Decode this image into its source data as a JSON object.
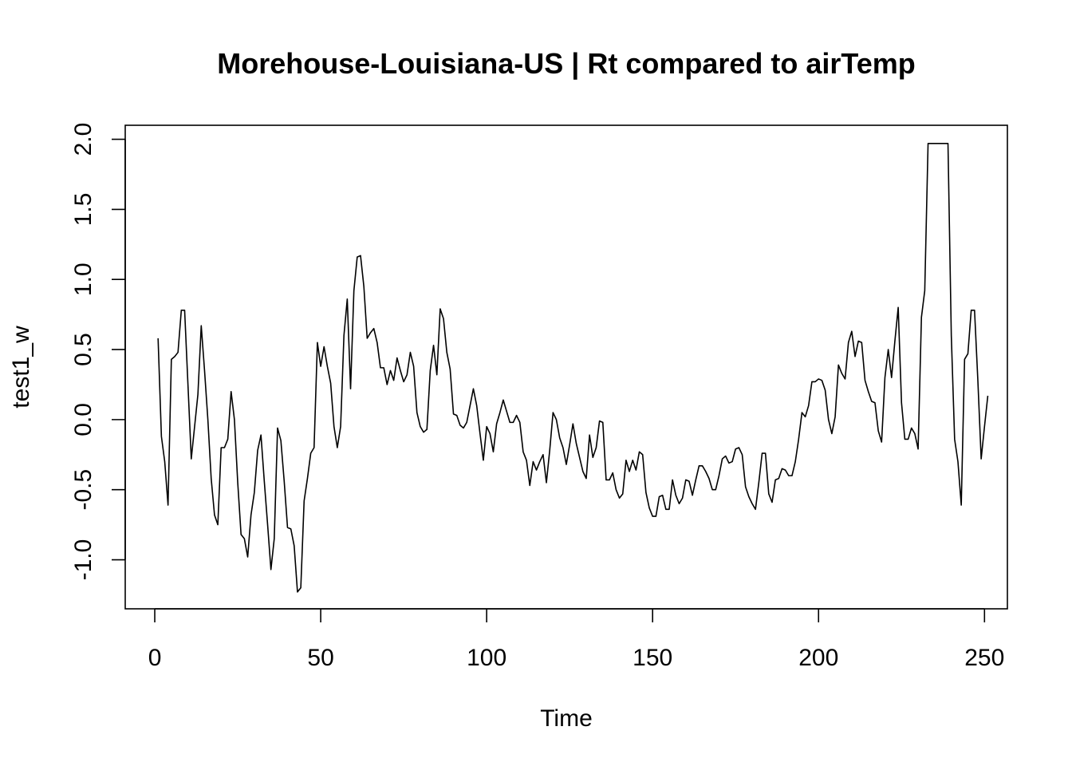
{
  "chart_data": {
    "type": "line",
    "title": "Morehouse-Louisiana-US | Rt compared to airTemp",
    "xlabel": "Time",
    "ylabel": "test1_w",
    "xlim": [
      -8.9,
      256.9
    ],
    "ylim": [
      -1.35,
      2.1
    ],
    "x_ticks": [
      0,
      50,
      100,
      150,
      200,
      250
    ],
    "x_tick_labels": [
      "0",
      "50",
      "100",
      "150",
      "200",
      "250"
    ],
    "y_ticks": [
      -1.0,
      -0.5,
      0.0,
      0.5,
      1.0,
      1.5,
      2.0
    ],
    "y_tick_labels": [
      "-1.0",
      "-0.5",
      "0.0",
      "0.5",
      "1.0",
      "1.5",
      "2.0"
    ],
    "grid": false,
    "x_start": 1,
    "x_step": 1,
    "series": [
      {
        "values": [
          0.58,
          -0.12,
          -0.3,
          -0.61,
          0.43,
          0.45,
          0.48,
          0.78,
          0.78,
          0.25,
          -0.28,
          -0.05,
          0.18,
          0.67,
          0.35,
          0.0,
          -0.42,
          -0.68,
          -0.75,
          -0.2,
          -0.2,
          -0.14,
          0.2,
          0.0,
          -0.45,
          -0.82,
          -0.85,
          -0.98,
          -0.68,
          -0.52,
          -0.22,
          -0.11,
          -0.44,
          -0.75,
          -1.07,
          -0.85,
          -0.06,
          -0.15,
          -0.44,
          -0.77,
          -0.78,
          -0.9,
          -1.23,
          -1.2,
          -0.58,
          -0.42,
          -0.24,
          -0.2,
          0.55,
          0.38,
          0.52,
          0.38,
          0.26,
          -0.05,
          -0.2,
          -0.05,
          0.6,
          0.86,
          0.22,
          0.92,
          1.16,
          1.17,
          0.95,
          0.58,
          0.62,
          0.65,
          0.55,
          0.37,
          0.37,
          0.25,
          0.35,
          0.28,
          0.44,
          0.35,
          0.27,
          0.32,
          0.48,
          0.38,
          0.05,
          -0.05,
          -0.09,
          -0.07,
          0.35,
          0.53,
          0.32,
          0.79,
          0.72,
          0.48,
          0.36,
          0.04,
          0.03,
          -0.04,
          -0.06,
          -0.02,
          0.1,
          0.22,
          0.1,
          -0.1,
          -0.29,
          -0.05,
          -0.1,
          -0.23,
          -0.03,
          0.05,
          0.14,
          0.06,
          -0.02,
          -0.02,
          0.03,
          -0.02,
          -0.23,
          -0.29,
          -0.47,
          -0.3,
          -0.36,
          -0.3,
          -0.25,
          -0.45,
          -0.22,
          0.05,
          0.0,
          -0.13,
          -0.2,
          -0.32,
          -0.18,
          -0.03,
          -0.17,
          -0.27,
          -0.37,
          -0.42,
          -0.11,
          -0.27,
          -0.2,
          -0.01,
          -0.02,
          -0.43,
          -0.43,
          -0.38,
          -0.5,
          -0.56,
          -0.53,
          -0.29,
          -0.37,
          -0.29,
          -0.36,
          -0.23,
          -0.25,
          -0.52,
          -0.63,
          -0.69,
          -0.69,
          -0.55,
          -0.54,
          -0.64,
          -0.64,
          -0.43,
          -0.54,
          -0.6,
          -0.56,
          -0.43,
          -0.44,
          -0.54,
          -0.43,
          -0.33,
          -0.33,
          -0.37,
          -0.42,
          -0.5,
          -0.5,
          -0.4,
          -0.28,
          -0.26,
          -0.31,
          -0.3,
          -0.21,
          -0.2,
          -0.25,
          -0.48,
          -0.55,
          -0.6,
          -0.64,
          -0.45,
          -0.24,
          -0.24,
          -0.53,
          -0.59,
          -0.43,
          -0.42,
          -0.35,
          -0.36,
          -0.4,
          -0.4,
          -0.3,
          -0.14,
          0.05,
          0.02,
          0.1,
          0.27,
          0.27,
          0.29,
          0.28,
          0.21,
          0.0,
          -0.1,
          0.02,
          0.39,
          0.33,
          0.29,
          0.55,
          0.63,
          0.45,
          0.56,
          0.55,
          0.28,
          0.2,
          0.13,
          0.12,
          -0.08,
          -0.16,
          0.3,
          0.5,
          0.3,
          0.56,
          0.8,
          0.12,
          -0.14,
          -0.14,
          -0.06,
          -0.1,
          -0.21,
          0.73,
          0.92,
          1.97,
          1.97,
          1.97,
          1.97,
          1.97,
          1.97,
          1.97,
          0.6,
          -0.14,
          -0.3,
          -0.61,
          0.43,
          0.47,
          0.78,
          0.78,
          0.28,
          -0.28,
          -0.05,
          0.17
        ]
      }
    ]
  }
}
